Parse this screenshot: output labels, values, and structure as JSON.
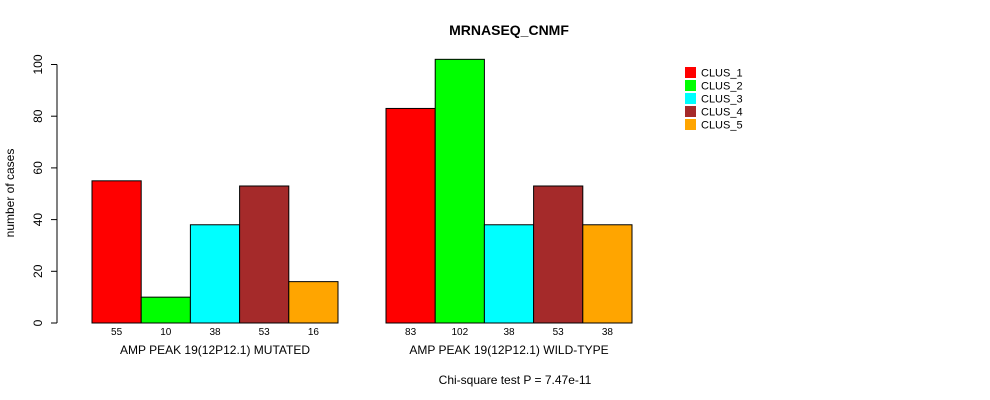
{
  "chart_data": {
    "type": "bar",
    "title": "MRNASEQ_CNMF",
    "ylabel": "number of cases",
    "xlabel": "",
    "ylim": [
      0,
      100
    ],
    "yticks": [
      0,
      20,
      40,
      60,
      80,
      100
    ],
    "groups": [
      "AMP PEAK 19(12P12.1) MUTATED",
      "AMP PEAK 19(12P12.1) WILD-TYPE"
    ],
    "series": [
      {
        "name": "CLUS_1",
        "color": "#ff0000",
        "values": [
          55,
          83
        ]
      },
      {
        "name": "CLUS_2",
        "color": "#00ff00",
        "values": [
          10,
          102
        ]
      },
      {
        "name": "CLUS_3",
        "color": "#00ffff",
        "values": [
          38,
          38
        ]
      },
      {
        "name": "CLUS_4",
        "color": "#a52a2a",
        "values": [
          53,
          53
        ]
      },
      {
        "name": "CLUS_5",
        "color": "#ffa500",
        "values": [
          16,
          38
        ]
      }
    ],
    "legend_position": "top-right",
    "footnote": "Chi-square test P = 7.47e-11"
  }
}
